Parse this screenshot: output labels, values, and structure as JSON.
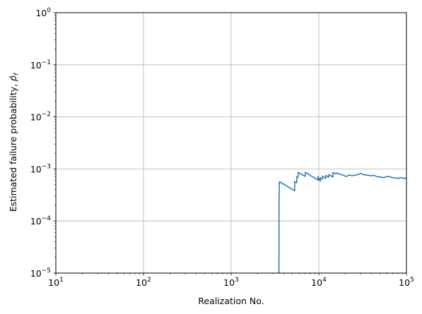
{
  "chart_data": {
    "type": "line",
    "title": "",
    "xlabel": "Realization No.",
    "ylabel": "Estimated failure probability, p̂_f",
    "xscale": "log",
    "yscale": "log",
    "xlim": [
      10,
      100000
    ],
    "ylim": [
      1e-05,
      1
    ],
    "grid": true,
    "x_ticks": [
      {
        "value": 10,
        "base": "10",
        "exp": "1"
      },
      {
        "value": 100,
        "base": "10",
        "exp": "2"
      },
      {
        "value": 1000,
        "base": "10",
        "exp": "3"
      },
      {
        "value": 10000,
        "base": "10",
        "exp": "4"
      },
      {
        "value": 100000,
        "base": "10",
        "exp": "5"
      }
    ],
    "y_ticks": [
      {
        "value": 1e-05,
        "base": "10",
        "exp": "−5"
      },
      {
        "value": 0.0001,
        "base": "10",
        "exp": "−4"
      },
      {
        "value": 0.001,
        "base": "10",
        "exp": "−3"
      },
      {
        "value": 0.01,
        "base": "10",
        "exp": "−2"
      },
      {
        "value": 0.1,
        "base": "10",
        "exp": "−1"
      },
      {
        "value": 1,
        "base": "10",
        "exp": "0"
      }
    ],
    "series": [
      {
        "color": "#1f77b4",
        "points": [
          [
            3510,
            1e-05
          ],
          [
            3520,
            0.00028
          ],
          [
            3550,
            0.00057
          ],
          [
            5300,
            0.00038
          ],
          [
            5310,
            0.00057
          ],
          [
            5600,
            0.00054
          ],
          [
            5610,
            0.00071
          ],
          [
            5800,
            0.00069
          ],
          [
            5810,
            0.00086
          ],
          [
            7000,
            0.00072
          ],
          [
            7010,
            0.00086
          ],
          [
            9800,
            0.00061
          ],
          [
            9810,
            0.00071
          ],
          [
            10400,
            0.00058
          ],
          [
            10410,
            0.00067
          ],
          [
            11000,
            0.00064
          ],
          [
            11010,
            0.00073
          ],
          [
            12000,
            0.00066
          ],
          [
            12010,
            0.00075
          ],
          [
            13000,
            0.00069
          ],
          [
            13010,
            0.00078
          ],
          [
            14500,
            0.0007
          ],
          [
            14510,
            0.00086
          ],
          [
            15500,
            0.0008
          ],
          [
            16000,
            0.00083
          ],
          [
            18000,
            0.00078
          ],
          [
            20000,
            0.00073
          ],
          [
            21000,
            0.00072
          ],
          [
            22000,
            0.00077
          ],
          [
            24000,
            0.00074
          ],
          [
            26000,
            0.00076
          ],
          [
            28000,
            0.00078
          ],
          [
            30000,
            0.00082
          ],
          [
            33000,
            0.00077
          ],
          [
            36000,
            0.00076
          ],
          [
            40000,
            0.00074
          ],
          [
            43000,
            0.00075
          ],
          [
            46000,
            0.00071
          ],
          [
            50000,
            0.0007
          ],
          [
            55000,
            0.00068
          ],
          [
            60000,
            0.00072
          ],
          [
            65000,
            0.0007
          ],
          [
            70000,
            0.00068
          ],
          [
            75000,
            0.00067
          ],
          [
            80000,
            0.00066
          ],
          [
            85000,
            0.00068
          ],
          [
            90000,
            0.00067
          ],
          [
            95000,
            0.00066
          ],
          [
            100000,
            0.00066
          ]
        ]
      }
    ]
  }
}
